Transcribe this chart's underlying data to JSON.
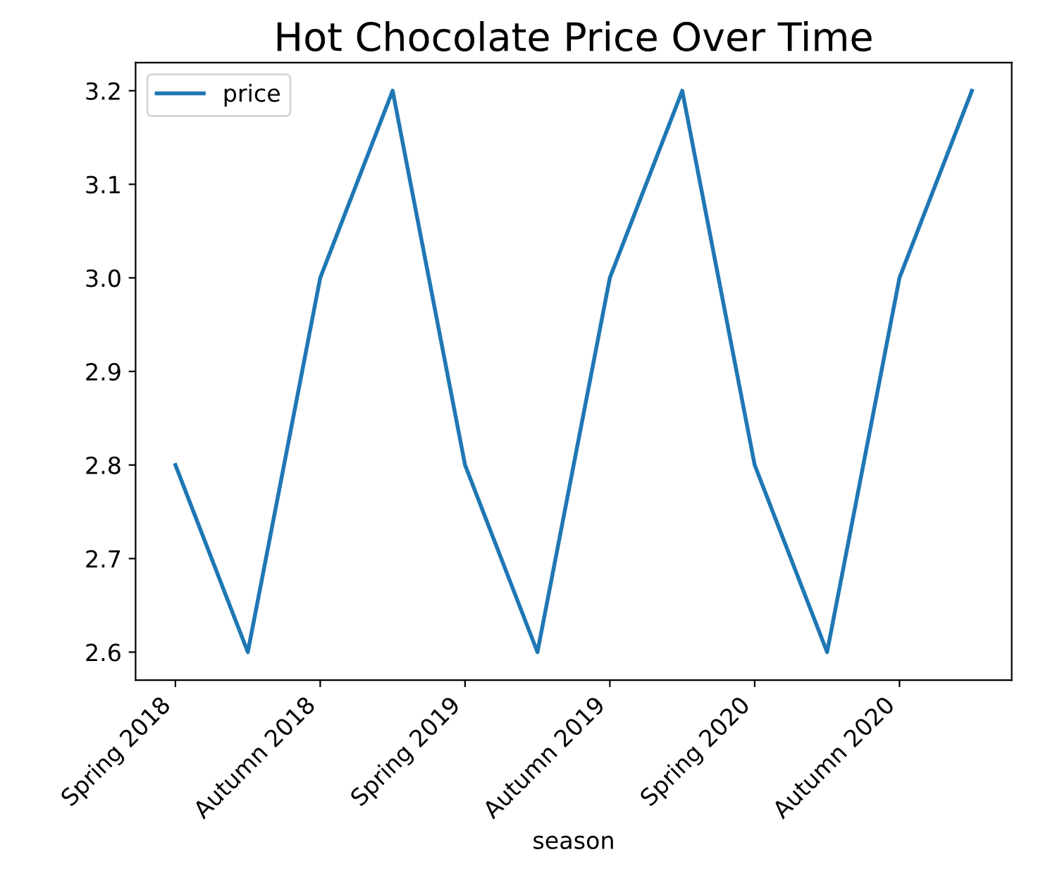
{
  "chart_data": {
    "type": "line",
    "title": "Hot Chocolate Price Over Time",
    "xlabel": "season",
    "categories": [
      "Spring 2018",
      null,
      "Autumn 2018",
      null,
      "Spring 2019",
      null,
      "Autumn 2019",
      null,
      "Spring 2020",
      null,
      "Autumn 2020",
      null
    ],
    "series": [
      {
        "name": "price",
        "color": "#1f77b4",
        "values": [
          2.8,
          2.6,
          3.0,
          3.2,
          2.8,
          2.6,
          3.0,
          3.2,
          2.8,
          2.6,
          3.0,
          3.2
        ]
      }
    ],
    "ylim": [
      2.57,
      3.23
    ],
    "yticks": [
      2.6,
      2.7,
      2.8,
      2.9,
      {
        "value": 3.0,
        "label": "3.0"
      },
      3.1,
      3.2
    ],
    "grid": false,
    "legend": "top left"
  }
}
